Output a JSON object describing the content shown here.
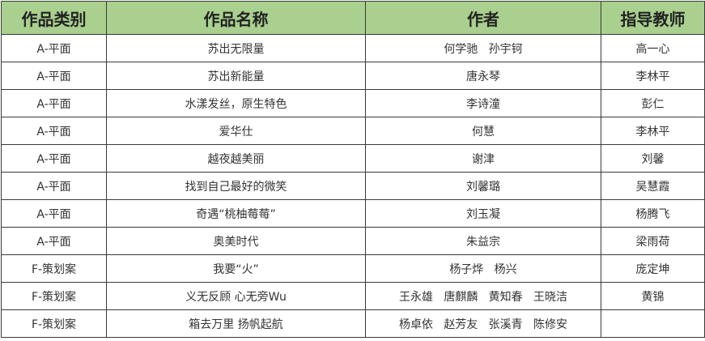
{
  "header": {
    "category": "作品类别",
    "title": "作品名称",
    "author": "作者",
    "teacher": "指导教师"
  },
  "header_color": "#a9d08e",
  "rows": [
    {
      "category": "A-平面",
      "title": "苏出无限量",
      "author": "何学驰   孙宇钶",
      "teacher": "高一心"
    },
    {
      "category": "A-平面",
      "title": "苏出新能量",
      "author": "唐永琴",
      "teacher": "李林平"
    },
    {
      "category": "A-平面",
      "title": "水漾发丝，原生特色",
      "author": "李诗潼",
      "teacher": "彭仁"
    },
    {
      "category": "A-平面",
      "title": "爱华仕",
      "author": "何慧",
      "teacher": "李林平"
    },
    {
      "category": "A-平面",
      "title": "越夜越美丽",
      "author": "谢津",
      "teacher": "刘馨"
    },
    {
      "category": "A-平面",
      "title": "找到自己最好的微笑",
      "author": "刘馨璐",
      "teacher": "吴慧霞"
    },
    {
      "category": "A-平面",
      "title": "奇遇“桃柚莓莓”",
      "author": "刘玉凝",
      "teacher": "杨腾飞"
    },
    {
      "category": "A-平面",
      "title": "奥美时代",
      "author": "朱益宗",
      "teacher": "梁雨荷"
    },
    {
      "category": "F-策划案",
      "title": "我要“火”",
      "author": "杨子烨   杨兴",
      "teacher": "庞定坤"
    },
    {
      "category": "F-策划案",
      "title": "义无反顾 心无旁Wu",
      "author": "王永雄   唐麒麟   黄知春   王晓洁",
      "teacher": "黄锦"
    },
    {
      "category": "F-策划案",
      "title": "箱去万里 扬帆起航",
      "author": "杨卓依   赵芳友   张溪青   陈修安",
      "teacher": ""
    }
  ]
}
